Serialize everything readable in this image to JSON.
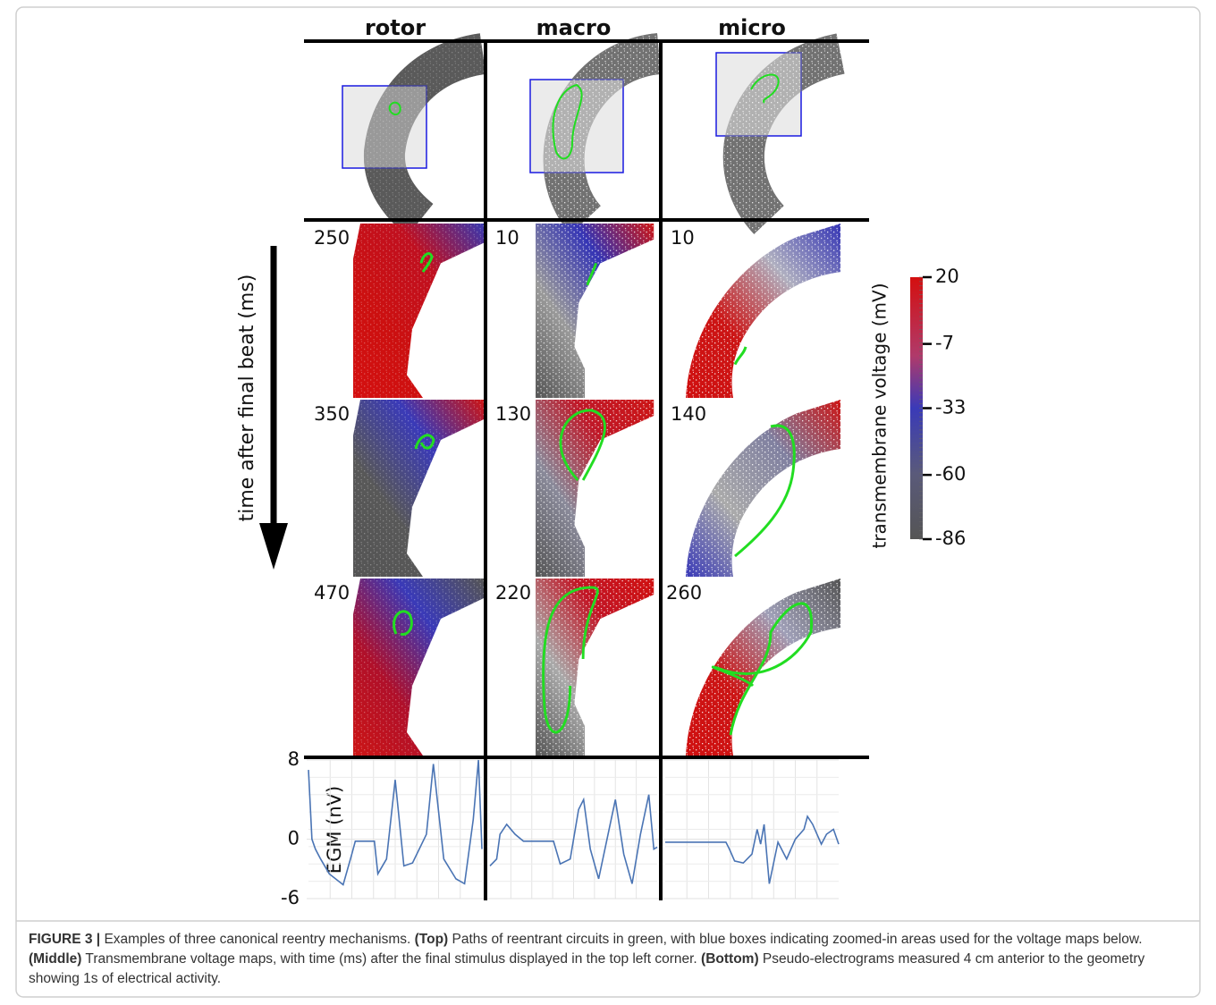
{
  "figure": {
    "columns": [
      "rotor",
      "macro",
      "micro"
    ],
    "time_labels": [
      [
        250,
        350,
        470
      ],
      [
        10,
        130,
        220
      ],
      [
        10,
        140,
        260
      ]
    ],
    "time_axis_label": "time after final beat (ms)",
    "colorbar": {
      "label": "transmembrane voltage (mV)",
      "lim": [
        -86,
        20
      ],
      "ticks": [
        20,
        -7,
        -33,
        -60,
        -86
      ]
    },
    "egm": {
      "ylabel": "EGM (nV)",
      "ylim": [
        -6,
        8
      ],
      "yticks": [
        8,
        0,
        -6
      ],
      "xlim": [
        0,
        1
      ],
      "series": [
        {
          "color": "#4a74b4",
          "x": [
            0,
            0.02,
            0.04,
            0.07,
            0.12,
            0.2,
            0.25,
            0.27,
            0.38,
            0.4,
            0.45,
            0.5,
            0.55,
            0.6,
            0.68,
            0.72,
            0.78,
            0.85,
            0.9,
            0.95,
            0.98,
            1
          ],
          "values": [
            7,
            0,
            -1,
            -2,
            -3.5,
            -4.6,
            -1.5,
            -0.2,
            -0.2,
            -3.5,
            -2,
            6,
            -2.7,
            -2.4,
            0.5,
            7.6,
            -2,
            -4,
            -4.5,
            2,
            8,
            -1
          ]
        },
        {
          "color": "#4a74b4",
          "x": [
            0,
            0.04,
            0.06,
            0.1,
            0.15,
            0.2,
            0.38,
            0.42,
            0.48,
            0.53,
            0.56,
            0.6,
            0.65,
            0.7,
            0.75,
            0.8,
            0.85,
            0.9,
            0.95,
            0.98,
            1
          ],
          "values": [
            -2.7,
            -2,
            0.5,
            1.5,
            0.5,
            -0.2,
            -0.2,
            -2.5,
            -2,
            3,
            4,
            -1,
            -4,
            0,
            4,
            -1.5,
            -4.5,
            0.5,
            4.5,
            -1,
            -0.8
          ]
        },
        {
          "color": "#4a74b4",
          "x": [
            0,
            0.35,
            0.37,
            0.4,
            0.45,
            0.5,
            0.53,
            0.55,
            0.57,
            0.6,
            0.65,
            0.7,
            0.75,
            0.8,
            0.82,
            0.85,
            0.9,
            0.93,
            0.97,
            1
          ],
          "values": [
            -0.3,
            -0.3,
            -1,
            -2.2,
            -2.4,
            -1.5,
            1,
            -0.5,
            1.5,
            -4.5,
            -0.3,
            -2,
            0,
            1,
            2.3,
            1.5,
            -0.5,
            0.5,
            1,
            -0.5
          ]
        }
      ]
    }
  },
  "caption": {
    "parts": [
      {
        "text": "FIGURE 3 |",
        "bold": true
      },
      {
        "text": " Examples of three canonical reentry mechanisms. ",
        "bold": false
      },
      {
        "text": "(Top)",
        "bold": true
      },
      {
        "text": " Paths of reentrant circuits in green, with blue boxes indicating zoomed-in areas used for the voltage maps below. ",
        "bold": false
      },
      {
        "text": "(Middle)",
        "bold": true
      },
      {
        "text": " Transmembrane voltage maps, with time (ms) after the final stimulus displayed in the top left corner. ",
        "bold": false
      },
      {
        "text": "(Bottom)",
        "bold": true
      },
      {
        "text": " Pseudo-electrograms measured 4 cm anterior to the geometry showing 1s of electrical activity.",
        "bold": false
      }
    ]
  }
}
